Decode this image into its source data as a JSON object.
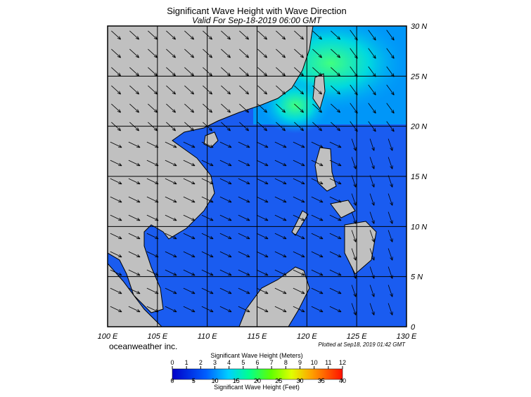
{
  "header": {
    "title": "Significant Wave Height with Wave Direction",
    "subtitle": "Valid For Sep-18-2019 06:00 GMT"
  },
  "map": {
    "lon_labels": [
      "100 E",
      "105 E",
      "110 E",
      "115 E",
      "120 E",
      "125 E",
      "130 E"
    ],
    "lat_labels": [
      "0",
      "5 N",
      "10 N",
      "15 N",
      "20 N",
      "25 N",
      "30 N"
    ]
  },
  "credit": "oceanweather inc.",
  "plotted": "Plotted at Sep18, 2019 01:42 GMT",
  "legend": {
    "meters_title": "Significant Wave Height (Meters)",
    "meters_ticks": [
      0,
      1,
      2,
      3,
      4,
      5,
      6,
      7,
      8,
      9,
      10,
      11,
      12
    ],
    "feet_ticks": [
      0,
      5,
      10,
      15,
      20,
      25,
      30,
      35,
      40
    ],
    "feet_title": "Significant Wave Height (Feet)"
  }
}
